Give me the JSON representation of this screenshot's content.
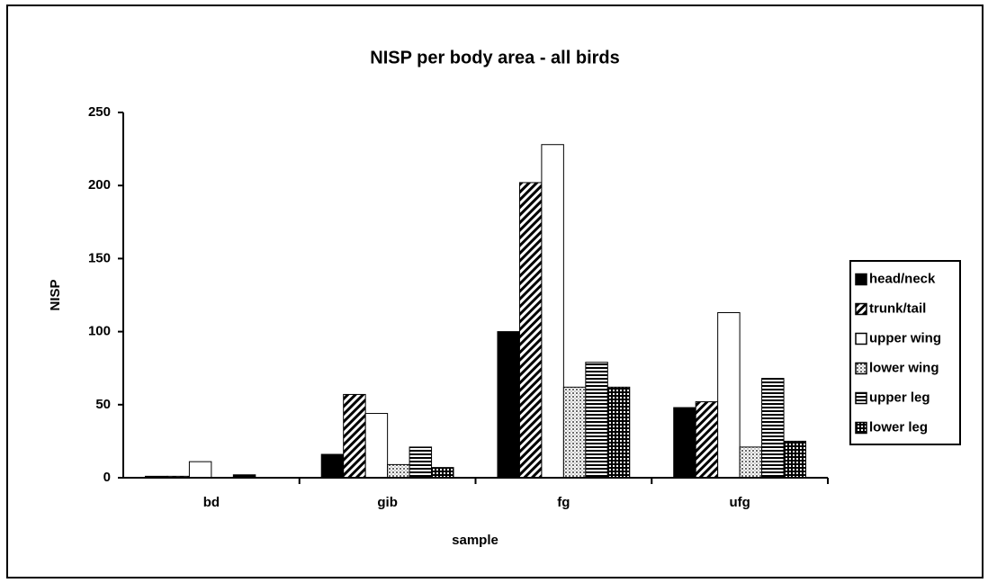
{
  "chart_data": {
    "type": "bar",
    "title": "NISP per body area - all birds",
    "x_label": "sample",
    "y_label": "NISP",
    "categories": [
      "bd",
      "gib",
      "fg",
      "ufg"
    ],
    "series": [
      {
        "name": "head/neck",
        "color": "#000000",
        "values": [
          1,
          16,
          100,
          48
        ]
      },
      {
        "name": "trunk/tail",
        "color": "#808080",
        "values": [
          1,
          57,
          202,
          52
        ]
      },
      {
        "name": "upper wing",
        "color": "#ffffff",
        "values": [
          11,
          44,
          228,
          113
        ]
      },
      {
        "name": "lower wing",
        "color": "#c8c8c8",
        "values": [
          0,
          9,
          62,
          21
        ]
      },
      {
        "name": "upper leg",
        "color": "#707070",
        "values": [
          2,
          21,
          79,
          68
        ]
      },
      {
        "name": "lower leg",
        "color": "#505050",
        "values": [
          0,
          7,
          62,
          25
        ]
      }
    ],
    "ylim": [
      0,
      250
    ],
    "yticks": [
      0,
      50,
      100,
      150,
      200,
      250
    ],
    "legend": "right"
  }
}
